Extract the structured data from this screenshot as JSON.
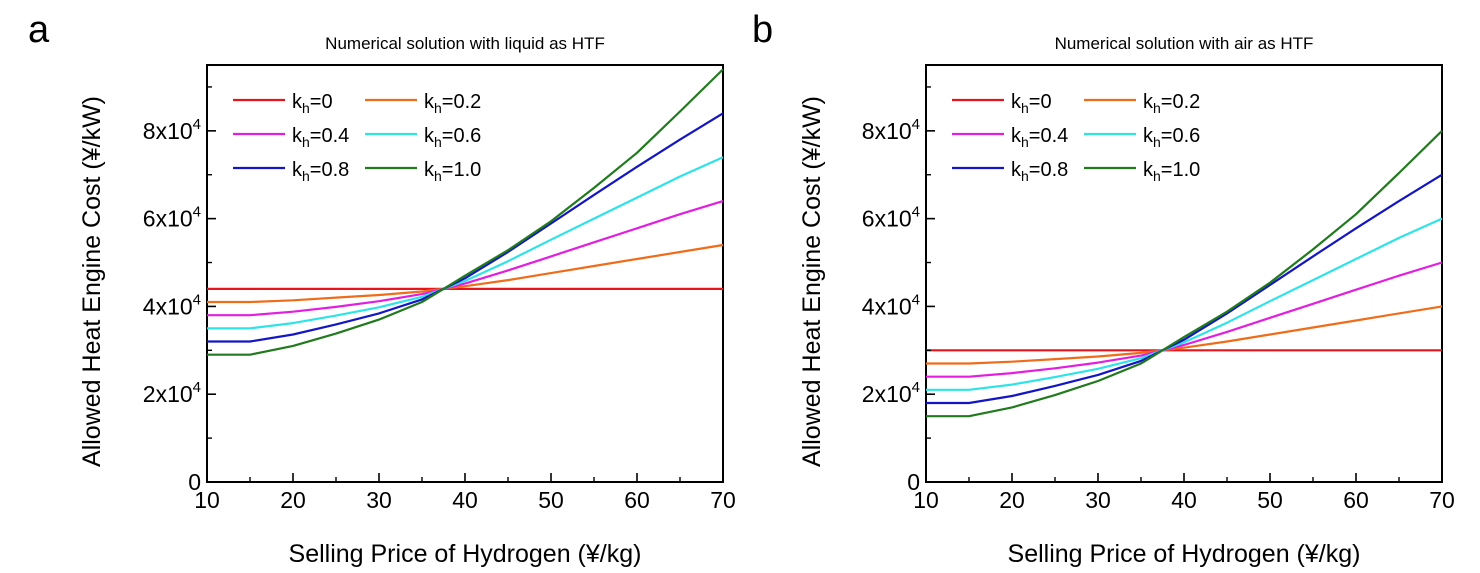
{
  "chart_data": [
    {
      "type": "line",
      "panel_label": "a",
      "title": "Numerical solution with liquid as HTF",
      "xlabel": "Selling Price of Hydrogen (¥/kg)",
      "ylabel": "Allowed Heat Engine Cost (¥/kW)",
      "xlim": [
        10,
        70
      ],
      "ylim": [
        0,
        95000
      ],
      "x_ticks": [
        10,
        20,
        30,
        40,
        50,
        60,
        70
      ],
      "y_ticks": [
        {
          "value": 0,
          "label": "0"
        },
        {
          "value": 20000,
          "label": "2x10",
          "exp": "4"
        },
        {
          "value": 40000,
          "label": "4x10",
          "exp": "4"
        },
        {
          "value": 60000,
          "label": "6x10",
          "exp": "4"
        },
        {
          "value": 80000,
          "label": "8x10",
          "exp": "4"
        }
      ],
      "x": [
        10,
        15,
        20,
        25,
        30,
        35,
        37.5,
        40,
        45,
        50,
        55,
        60,
        65,
        70
      ],
      "series": [
        {
          "name": "k",
          "sub": "h",
          "value": "=0",
          "color": "#e8141c",
          "values": [
            44000,
            44000,
            44000,
            44000,
            44000,
            44000,
            44000,
            44000,
            44000,
            44000,
            44000,
            44000,
            44000,
            44000
          ]
        },
        {
          "name": "k",
          "sub": "h",
          "value": "=0.2",
          "color": "#ef6c1a",
          "values": [
            41000,
            41000,
            41400,
            42000,
            42600,
            43400,
            44000,
            44600,
            46000,
            47600,
            49200,
            50800,
            52400,
            54000
          ]
        },
        {
          "name": "k",
          "sub": "h",
          "value": "=0.4",
          "color": "#e21fe0",
          "values": [
            38000,
            38000,
            38800,
            39900,
            41200,
            42800,
            44000,
            45200,
            48200,
            51400,
            54600,
            57800,
            61000,
            64000
          ]
        },
        {
          "name": "k",
          "sub": "h",
          "value": "=0.6",
          "color": "#2ee3e8",
          "values": [
            35000,
            35000,
            36200,
            37900,
            39800,
            42200,
            44000,
            45800,
            50300,
            55200,
            60000,
            64800,
            69600,
            74000
          ]
        },
        {
          "name": "k",
          "sub": "h",
          "value": "=0.8",
          "color": "#1416c4",
          "values": [
            32000,
            32000,
            33600,
            35900,
            38400,
            41600,
            44000,
            46400,
            52400,
            58900,
            65400,
            71800,
            78000,
            84000
          ]
        },
        {
          "name": "k",
          "sub": "h",
          "value": "=1.0",
          "color": "#217a1e",
          "values": [
            29000,
            29000,
            31000,
            33800,
            37000,
            41000,
            44000,
            47000,
            52800,
            59400,
            67000,
            75000,
            84400,
            94000
          ]
        }
      ]
    },
    {
      "type": "line",
      "panel_label": "b",
      "title": "Numerical solution with air as HTF",
      "xlabel": "Selling Price of Hydrogen (¥/kg)",
      "ylabel": "Allowed Heat Engine Cost (¥/kW)",
      "xlim": [
        10,
        70
      ],
      "ylim": [
        0,
        95000
      ],
      "x_ticks": [
        10,
        20,
        30,
        40,
        50,
        60,
        70
      ],
      "y_ticks": [
        {
          "value": 0,
          "label": "0"
        },
        {
          "value": 20000,
          "label": "2x10",
          "exp": "4"
        },
        {
          "value": 40000,
          "label": "4x10",
          "exp": "4"
        },
        {
          "value": 60000,
          "label": "6x10",
          "exp": "4"
        },
        {
          "value": 80000,
          "label": "8x10",
          "exp": "4"
        }
      ],
      "x": [
        10,
        15,
        20,
        25,
        30,
        35,
        37.5,
        40,
        45,
        50,
        55,
        60,
        65,
        70
      ],
      "series": [
        {
          "name": "k",
          "sub": "h",
          "value": "=0",
          "color": "#e8141c",
          "values": [
            30000,
            30000,
            30000,
            30000,
            30000,
            30000,
            30000,
            30000,
            30000,
            30000,
            30000,
            30000,
            30000,
            30000
          ]
        },
        {
          "name": "k",
          "sub": "h",
          "value": "=0.2",
          "color": "#ef6c1a",
          "values": [
            27000,
            27000,
            27400,
            28000,
            28600,
            29400,
            30000,
            30600,
            32000,
            33600,
            35200,
            36800,
            38400,
            40000
          ]
        },
        {
          "name": "k",
          "sub": "h",
          "value": "=0.4",
          "color": "#e21fe0",
          "values": [
            24000,
            24000,
            24800,
            25900,
            27200,
            28800,
            30000,
            31200,
            34200,
            37400,
            40600,
            43800,
            47000,
            50000
          ]
        },
        {
          "name": "k",
          "sub": "h",
          "value": "=0.6",
          "color": "#2ee3e8",
          "values": [
            21000,
            21000,
            22200,
            23900,
            25800,
            28200,
            30000,
            31800,
            36300,
            41200,
            46000,
            50800,
            55600,
            60000
          ]
        },
        {
          "name": "k",
          "sub": "h",
          "value": "=0.8",
          "color": "#1416c4",
          "values": [
            18000,
            18000,
            19600,
            21900,
            24400,
            27600,
            30000,
            32400,
            38400,
            44900,
            51400,
            57800,
            64000,
            70000
          ]
        },
        {
          "name": "k",
          "sub": "h",
          "value": "=1.0",
          "color": "#217a1e",
          "values": [
            15000,
            15000,
            17000,
            19800,
            23000,
            27000,
            30000,
            33000,
            38800,
            45400,
            53000,
            61000,
            70400,
            80000
          ]
        }
      ]
    }
  ]
}
